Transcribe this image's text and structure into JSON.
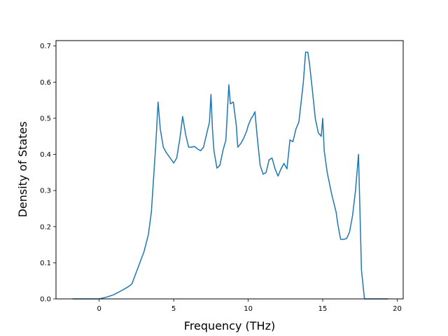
{
  "chart_data": {
    "type": "line",
    "title": "",
    "xlabel": "Frequency (THz)",
    "ylabel": "Density of States",
    "xlim": [
      -2.9,
      20.4
    ],
    "ylim": [
      0.0,
      0.715
    ],
    "xticks": [
      0,
      5,
      10,
      15,
      20
    ],
    "xtick_labels": [
      "0",
      "5",
      "10",
      "15",
      "20"
    ],
    "yticks": [
      0.0,
      0.1,
      0.2,
      0.3,
      0.4,
      0.5,
      0.6,
      0.7
    ],
    "ytick_labels": [
      "0.0",
      "0.1",
      "0.2",
      "0.3",
      "0.4",
      "0.5",
      "0.6",
      "0.7"
    ],
    "grid": false,
    "line_color": "#1f77b4",
    "series": [
      {
        "x": [
          -1.8,
          -1.0,
          0.0,
          0.5,
          1.0,
          1.5,
          2.0,
          2.2,
          2.5,
          3.0,
          3.3,
          3.5,
          3.8,
          3.95,
          4.1,
          4.3,
          4.5,
          4.8,
          5.0,
          5.2,
          5.4,
          5.6,
          5.8,
          6.0,
          6.2,
          6.4,
          6.6,
          6.8,
          7.0,
          7.2,
          7.4,
          7.5,
          7.6,
          7.7,
          7.9,
          8.1,
          8.3,
          8.5,
          8.7,
          8.8,
          9.0,
          9.2,
          9.3,
          9.5,
          9.7,
          9.9,
          10.0,
          10.2,
          10.3,
          10.45,
          10.6,
          10.8,
          11.0,
          11.2,
          11.4,
          11.6,
          11.8,
          12.0,
          12.2,
          12.4,
          12.6,
          12.8,
          13.0,
          13.2,
          13.4,
          13.7,
          13.85,
          14.0,
          14.1,
          14.3,
          14.5,
          14.7,
          14.9,
          15.0,
          15.1,
          15.3,
          15.6,
          15.9,
          16.0,
          16.2,
          16.4,
          16.6,
          16.8,
          17.0,
          17.2,
          17.4,
          17.6,
          17.8,
          18.5,
          19.4
        ],
        "y": [
          0.0,
          0.0,
          0.0,
          0.005,
          0.012,
          0.023,
          0.035,
          0.042,
          0.075,
          0.13,
          0.178,
          0.24,
          0.43,
          0.545,
          0.47,
          0.42,
          0.405,
          0.388,
          0.376,
          0.39,
          0.44,
          0.505,
          0.455,
          0.42,
          0.42,
          0.422,
          0.415,
          0.41,
          0.42,
          0.455,
          0.49,
          0.566,
          0.47,
          0.41,
          0.362,
          0.37,
          0.41,
          0.44,
          0.593,
          0.54,
          0.545,
          0.48,
          0.42,
          0.43,
          0.445,
          0.465,
          0.48,
          0.5,
          0.505,
          0.518,
          0.45,
          0.37,
          0.345,
          0.35,
          0.385,
          0.39,
          0.36,
          0.34,
          0.36,
          0.375,
          0.36,
          0.44,
          0.435,
          0.47,
          0.49,
          0.6,
          0.683,
          0.683,
          0.655,
          0.58,
          0.5,
          0.46,
          0.45,
          0.5,
          0.41,
          0.35,
          0.29,
          0.24,
          0.21,
          0.165,
          0.165,
          0.167,
          0.185,
          0.23,
          0.3,
          0.4,
          0.08,
          0.0,
          0.0,
          0.0
        ]
      }
    ]
  }
}
